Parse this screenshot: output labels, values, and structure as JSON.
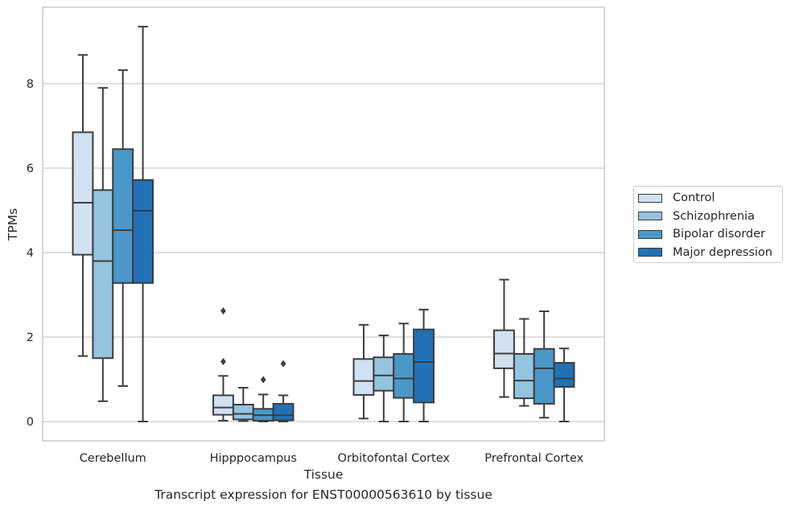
{
  "chart_data": {
    "type": "box",
    "title": "",
    "caption": "Transcript expression for ENST00000563610 by tissue",
    "xlabel": "Tissue",
    "ylabel": "TPMs",
    "ylim": [
      -0.45,
      9.8
    ],
    "yticks": [
      0,
      2,
      4,
      6,
      8
    ],
    "grid": "horizontal",
    "legend_position": "right",
    "categories": [
      "Cerebellum",
      "Hipppocampus",
      "Orbitofontal Cortex",
      "Prefrontal Cortex"
    ],
    "series": [
      {
        "name": "Control",
        "color": "#d0e1f2",
        "boxes": [
          {
            "whisker_low": 1.55,
            "q1": 3.95,
            "median": 5.18,
            "q3": 6.85,
            "whisker_high": 8.68,
            "outliers": []
          },
          {
            "whisker_low": 0.02,
            "q1": 0.16,
            "median": 0.33,
            "q3": 0.62,
            "whisker_high": 1.08,
            "outliers": [
              1.42,
              2.62
            ]
          },
          {
            "whisker_low": 0.07,
            "q1": 0.63,
            "median": 0.96,
            "q3": 1.48,
            "whisker_high": 2.29,
            "outliers": []
          },
          {
            "whisker_low": 0.58,
            "q1": 1.26,
            "median": 1.61,
            "q3": 2.16,
            "whisker_high": 3.36,
            "outliers": []
          }
        ]
      },
      {
        "name": "Schizophrenia",
        "color": "#94c4df",
        "boxes": [
          {
            "whisker_low": 0.48,
            "q1": 1.5,
            "median": 3.8,
            "q3": 5.48,
            "whisker_high": 7.9,
            "outliers": []
          },
          {
            "whisker_low": 0.01,
            "q1": 0.05,
            "median": 0.18,
            "q3": 0.4,
            "whisker_high": 0.8,
            "outliers": []
          },
          {
            "whisker_low": 0.0,
            "q1": 0.73,
            "median": 1.09,
            "q3": 1.52,
            "whisker_high": 2.04,
            "outliers": []
          },
          {
            "whisker_low": 0.37,
            "q1": 0.55,
            "median": 0.97,
            "q3": 1.6,
            "whisker_high": 2.43,
            "outliers": []
          }
        ]
      },
      {
        "name": "Bipolar disorder",
        "color": "#4a98c9",
        "boxes": [
          {
            "whisker_low": 0.84,
            "q1": 3.28,
            "median": 4.53,
            "q3": 6.45,
            "whisker_high": 8.32,
            "outliers": []
          },
          {
            "whisker_low": 0.0,
            "q1": 0.02,
            "median": 0.15,
            "q3": 0.3,
            "whisker_high": 0.64,
            "outliers": [
              0.99
            ]
          },
          {
            "whisker_low": 0.0,
            "q1": 0.56,
            "median": 1.02,
            "q3": 1.6,
            "whisker_high": 2.32,
            "outliers": []
          },
          {
            "whisker_low": 0.09,
            "q1": 0.42,
            "median": 1.26,
            "q3": 1.72,
            "whisker_high": 2.61,
            "outliers": []
          }
        ]
      },
      {
        "name": "Major depression",
        "color": "#2271b5",
        "boxes": [
          {
            "whisker_low": 0.0,
            "q1": 3.28,
            "median": 4.99,
            "q3": 5.72,
            "whisker_high": 9.35,
            "outliers": []
          },
          {
            "whisker_low": 0.0,
            "q1": 0.03,
            "median": 0.15,
            "q3": 0.42,
            "whisker_high": 0.62,
            "outliers": [
              1.37
            ]
          },
          {
            "whisker_low": 0.0,
            "q1": 0.45,
            "median": 1.41,
            "q3": 2.18,
            "whisker_high": 2.65,
            "outliers": []
          },
          {
            "whisker_low": 0.0,
            "q1": 0.82,
            "median": 1.02,
            "q3": 1.39,
            "whisker_high": 1.73,
            "outliers": []
          }
        ]
      }
    ]
  }
}
